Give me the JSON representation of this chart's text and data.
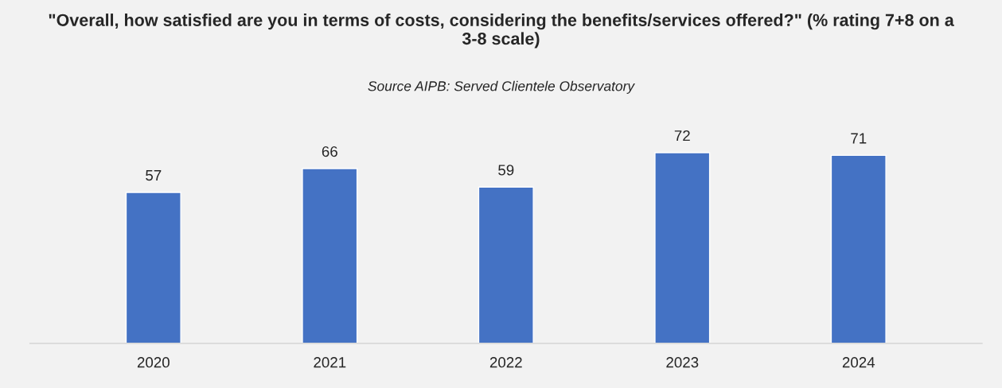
{
  "chart_data": {
    "type": "bar",
    "title": "\"Overall, how satisfied are you in terms of costs, considering the benefits/services offered?\" (% rating 7+8 on a 3-8 scale)",
    "subtitle": "Source AIPB: Served Clientele Observatory",
    "categories": [
      "2020",
      "2021",
      "2022",
      "2023",
      "2024"
    ],
    "values": [
      57,
      66,
      59,
      72,
      71
    ],
    "color": "#4472c4",
    "data_labels": true,
    "grid": false,
    "legend": false
  }
}
